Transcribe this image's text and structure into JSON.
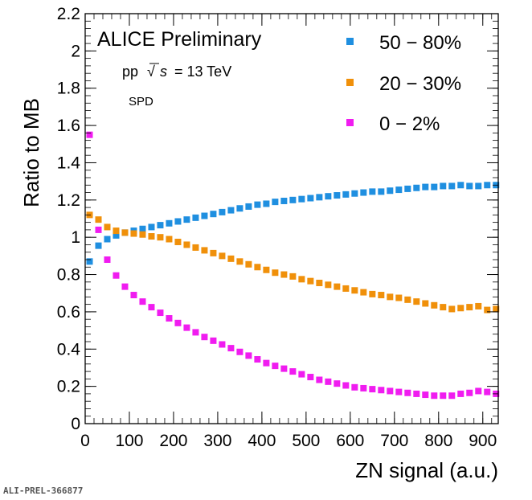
{
  "chart_data": {
    "type": "scatter",
    "xlabel": "ZN signal (a.u.)",
    "ylabel": "Ratio to MB",
    "xlim": [
      0,
      935
    ],
    "ylim": [
      0,
      2.2
    ],
    "xticks": [
      "0",
      "100",
      "200",
      "300",
      "400",
      "500",
      "600",
      "700",
      "800",
      "900"
    ],
    "yticks": [
      "0",
      "0.2",
      "0.4",
      "0.6",
      "0.8",
      "1",
      "1.2",
      "1.4",
      "1.6",
      "1.8",
      "2",
      "2.2"
    ],
    "legend_position": "top-right",
    "annotations": {
      "experiment": "ALICE Preliminary",
      "system_prefix": "pp",
      "sqrt_symbol": "√",
      "energy_var": "s",
      "energy_value": "= 13 TeV",
      "detector": "SPD"
    },
    "x": [
      10,
      30,
      50,
      70,
      90,
      110,
      130,
      150,
      170,
      190,
      210,
      230,
      250,
      270,
      290,
      310,
      330,
      350,
      370,
      390,
      410,
      430,
      450,
      470,
      490,
      510,
      530,
      550,
      570,
      590,
      610,
      630,
      650,
      670,
      690,
      710,
      730,
      750,
      770,
      790,
      810,
      830,
      850,
      870,
      890,
      910,
      930
    ],
    "series": [
      {
        "name": "50 − 80%",
        "color": "#1f8fe0",
        "values": [
          0.87,
          0.955,
          0.99,
          1.01,
          1.025,
          1.035,
          1.045,
          1.055,
          1.065,
          1.075,
          1.085,
          1.095,
          1.105,
          1.115,
          1.125,
          1.135,
          1.145,
          1.155,
          1.165,
          1.175,
          1.18,
          1.19,
          1.195,
          1.2,
          1.205,
          1.21,
          1.215,
          1.22,
          1.225,
          1.23,
          1.235,
          1.24,
          1.245,
          1.245,
          1.25,
          1.255,
          1.26,
          1.265,
          1.27,
          1.27,
          1.275,
          1.275,
          1.28,
          1.275,
          1.275,
          1.28,
          1.28
        ]
      },
      {
        "name": "20 − 30%",
        "color": "#f0900a",
        "values": [
          1.12,
          1.095,
          1.055,
          1.035,
          1.025,
          1.02,
          1.015,
          1.005,
          1.0,
          0.99,
          0.975,
          0.96,
          0.945,
          0.93,
          0.915,
          0.9,
          0.885,
          0.87,
          0.855,
          0.84,
          0.825,
          0.81,
          0.8,
          0.79,
          0.775,
          0.765,
          0.755,
          0.745,
          0.735,
          0.725,
          0.715,
          0.705,
          0.695,
          0.69,
          0.68,
          0.675,
          0.665,
          0.655,
          0.645,
          0.635,
          0.625,
          0.615,
          0.62,
          0.625,
          0.63,
          0.61,
          0.615
        ]
      },
      {
        "name": "0 − 2%",
        "color": "#f01cf0",
        "values": [
          1.55,
          1.04,
          0.88,
          0.795,
          0.735,
          0.69,
          0.655,
          0.625,
          0.595,
          0.565,
          0.54,
          0.515,
          0.49,
          0.465,
          0.445,
          0.425,
          0.405,
          0.385,
          0.365,
          0.345,
          0.325,
          0.31,
          0.295,
          0.28,
          0.265,
          0.25,
          0.235,
          0.225,
          0.215,
          0.205,
          0.195,
          0.19,
          0.185,
          0.18,
          0.175,
          0.17,
          0.165,
          0.16,
          0.155,
          0.15,
          0.15,
          0.15,
          0.16,
          0.165,
          0.175,
          0.17,
          0.16
        ]
      }
    ]
  },
  "footer": {
    "id_label": "ALI-PREL-366877"
  }
}
